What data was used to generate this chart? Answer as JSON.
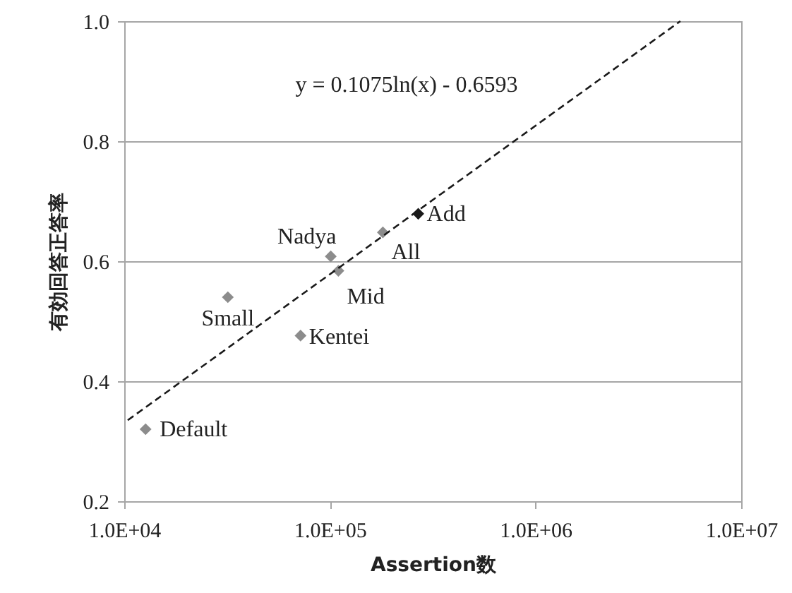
{
  "chart_data": {
    "type": "scatter",
    "xlabel": "Assertion数",
    "ylabel": "有効回答正答率",
    "log": "x",
    "grid": "y",
    "marker": "diamond",
    "xlim": [
      10000,
      10000000
    ],
    "xticks": [
      {
        "value": 10000,
        "label": "1.0E+04"
      },
      {
        "value": 100000,
        "label": "1.0E+05"
      },
      {
        "value": 1000000,
        "label": "1.0E+06"
      },
      {
        "value": 10000000,
        "label": "1.0E+07"
      }
    ],
    "ylim": [
      0.2,
      1.0
    ],
    "yticks": [
      0.2,
      0.4,
      0.6,
      0.8,
      {
        "value": 1.0,
        "label": "1.0"
      }
    ],
    "annotations": [
      "y = 0.1075ln(x) - 0.6593"
    ],
    "series": [
      {
        "name": "Default",
        "color": "#8c8c8c",
        "x": [
          12700
        ],
        "values": [
          0.32
        ]
      },
      {
        "name": "Small",
        "color": "#8c8c8c",
        "x": [
          31900
        ],
        "values": [
          0.54
        ]
      },
      {
        "name": "Kentei",
        "color": "#8c8c8c",
        "x": [
          72000
        ],
        "values": [
          0.476
        ]
      },
      {
        "name": "Nadya",
        "color": "#8c8c8c",
        "x": [
          101000
        ],
        "values": [
          0.608
        ]
      },
      {
        "name": "Mid",
        "color": "#8c8c8c",
        "x": [
          110000
        ],
        "values": [
          0.584
        ]
      },
      {
        "name": "All",
        "color": "#8c8c8c",
        "x": [
          181000
        ],
        "values": [
          0.648
        ]
      },
      {
        "name": "Add",
        "color": "#1a1a1a",
        "x": [
          269000
        ],
        "values": [
          0.679
        ]
      },
      {
        "type": "line",
        "color": "#1a1a1a",
        "line_style": "dashed",
        "marker": "none",
        "x": [
          10400,
          5060000
        ],
        "values": [
          0.335,
          1.0
        ]
      }
    ]
  }
}
